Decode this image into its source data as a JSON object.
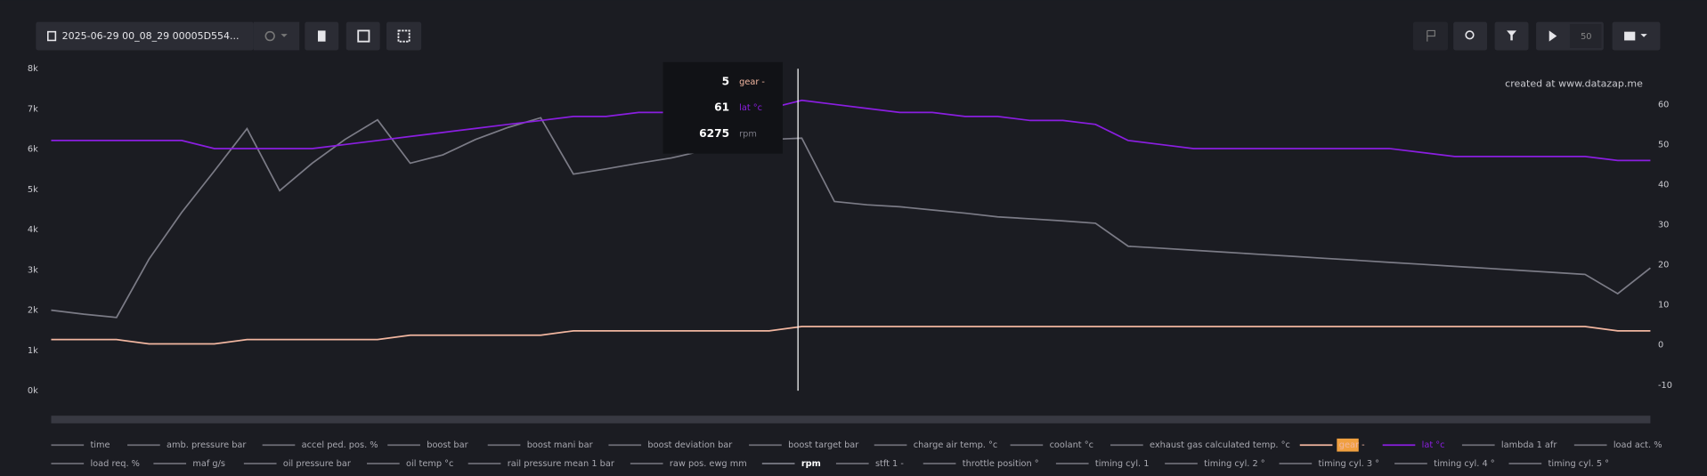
{
  "toolbar": {
    "file": "2025-06-29 00_08_29 00005D554...",
    "speed": "50"
  },
  "watermark": "created at www.datazap.me",
  "tooltip": {
    "values": [
      "5",
      "61",
      "6275"
    ]
  },
  "legend": {
    "row1": [
      "time",
      "amb. pressure bar",
      "accel ped. pos. %",
      "boost bar",
      "boost mani bar",
      "boost deviation bar",
      "boost target bar",
      "charge air temp. °c",
      "coolant °c",
      "exhaust gas calculated temp. °c",
      "gear -",
      "lat °c",
      "lambda 1 afr",
      "load act. %"
    ],
    "row2": [
      "load req. %",
      "maf g/s",
      "oil pressure bar",
      "oil temp °c",
      "rail pressure mean 1 bar",
      "raw pos. ewg mm",
      "rpm",
      "stft 1 -",
      "throttle position °",
      "timing cyl. 1",
      "timing cyl. 2 °",
      "timing cyl. 3 °",
      "timing cyl. 4 °",
      "timing cyl. 5 °"
    ]
  },
  "chart_data": {
    "type": "line",
    "ylim": [
      0,
      8000
    ],
    "yticks": [
      {
        "value": 0,
        "label": "0k"
      },
      {
        "value": 1000,
        "label": "1k"
      },
      {
        "value": 2000,
        "label": "2k"
      },
      {
        "value": 3000,
        "label": "3k"
      },
      {
        "value": 4000,
        "label": "4k"
      },
      {
        "value": 5000,
        "label": "5k"
      },
      {
        "value": 6000,
        "label": "6k"
      },
      {
        "value": 7000,
        "label": "7k"
      },
      {
        "value": 8000,
        "label": "8k"
      }
    ],
    "y2lim": [
      -11.4,
      68.9
    ],
    "y2ticks": [
      -10,
      0,
      10,
      20,
      30,
      40,
      50,
      60
    ],
    "y3lim": [
      -9.75,
      64.25
    ],
    "series": [
      {
        "name": "rpm",
        "color": "#7b7b86",
        "values": [
          2000,
          1900,
          1820,
          3270,
          4430,
          5460,
          6510,
          4970,
          5650,
          6240,
          6730,
          5650,
          5860,
          6240,
          6540,
          6780,
          5380,
          5510,
          5650,
          5780,
          5970,
          6110,
          6240,
          6275,
          4700,
          4620,
          4570,
          4490,
          4410,
          4320,
          4270,
          4220,
          4160,
          3590,
          3540,
          3490,
          3440,
          3390,
          3340,
          3290,
          3240,
          3190,
          3140,
          3090,
          3040,
          2990,
          2940,
          2890,
          2410,
          3050
        ]
      },
      {
        "name": "gear -",
        "color": "#f2b6a0",
        "axis": "y3",
        "values": [
          2,
          2,
          2,
          1,
          1,
          1,
          2,
          2,
          2,
          2,
          2,
          3,
          3,
          3,
          3,
          3,
          4,
          4,
          4,
          4,
          4,
          4,
          4,
          5,
          5,
          5,
          5,
          5,
          5,
          5,
          5,
          5,
          5,
          5,
          5,
          5,
          5,
          5,
          5,
          5,
          5,
          5,
          5,
          5,
          5,
          5,
          5,
          5,
          4,
          4
        ]
      },
      {
        "name": "lat °c",
        "color": "#8a1ee0",
        "axis": "y2",
        "values": [
          51,
          51,
          51,
          51,
          51,
          49,
          49,
          49,
          49,
          50,
          51,
          52,
          53,
          54,
          55,
          56,
          57,
          57,
          58,
          58,
          58,
          58,
          59,
          61,
          60,
          59,
          58,
          58,
          57,
          57,
          56,
          56,
          55,
          51,
          50,
          49,
          49,
          49,
          49,
          49,
          49,
          49,
          48,
          47,
          47,
          47,
          47,
          47,
          46,
          46
        ]
      }
    ]
  }
}
